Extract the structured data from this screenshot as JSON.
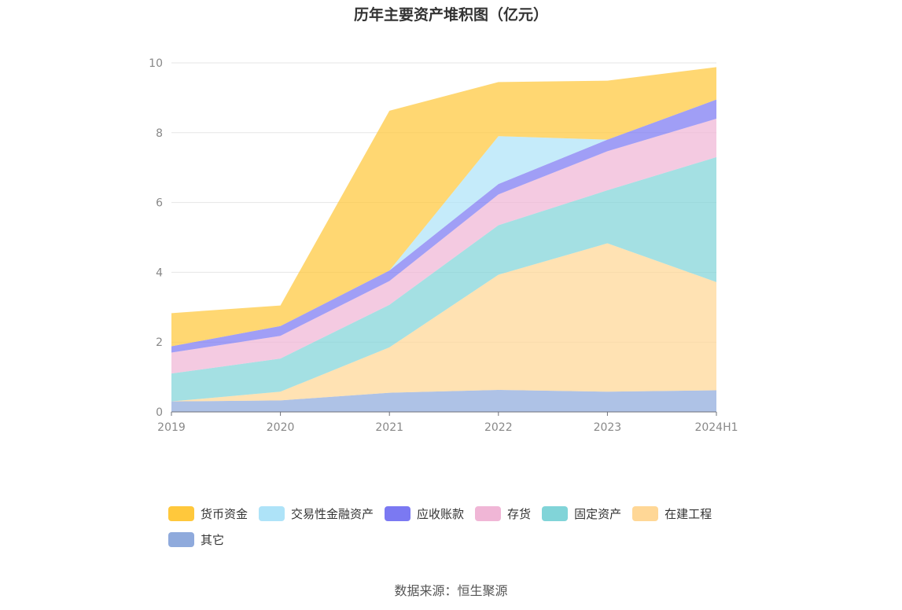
{
  "chart_data": {
    "type": "area",
    "stacked": true,
    "title": "历年主要资产堆积图（亿元）",
    "categories": [
      "2019",
      "2020",
      "2021",
      "2022",
      "2023",
      "2024H1"
    ],
    "ylim": [
      0,
      10
    ],
    "yticks": [
      0,
      2,
      4,
      6,
      8,
      10
    ],
    "grid": true,
    "legend_position": "bottom",
    "series": [
      {
        "name": "其它",
        "color": "#8faadc",
        "values": [
          0.3,
          0.33,
          0.55,
          0.63,
          0.58,
          0.62
        ]
      },
      {
        "name": "在建工程",
        "color": "#ffd796",
        "values": [
          0.0,
          0.25,
          1.3,
          3.3,
          4.25,
          3.1
        ]
      },
      {
        "name": "固定资产",
        "color": "#81d4d8",
        "values": [
          0.8,
          0.95,
          1.22,
          1.42,
          1.52,
          3.58
        ]
      },
      {
        "name": "存货",
        "color": "#f0b6d6",
        "values": [
          0.6,
          0.65,
          0.68,
          0.88,
          1.12,
          1.1
        ]
      },
      {
        "name": "应收账款",
        "color": "#7b79f2",
        "values": [
          0.18,
          0.28,
          0.3,
          0.3,
          0.33,
          0.55
        ]
      },
      {
        "name": "交易性金融资产",
        "color": "#aee3f8",
        "values": [
          0.0,
          0.0,
          0.0,
          1.37,
          0.0,
          0.0
        ]
      },
      {
        "name": "货币资金",
        "color": "#ffc83c",
        "values": [
          0.95,
          0.59,
          4.58,
          1.55,
          1.69,
          0.93
        ]
      }
    ],
    "legend_order": [
      "货币资金",
      "交易性金融资产",
      "应收账款",
      "存货",
      "固定资产",
      "在建工程",
      "其它"
    ]
  },
  "source": "数据来源：恒生聚源"
}
